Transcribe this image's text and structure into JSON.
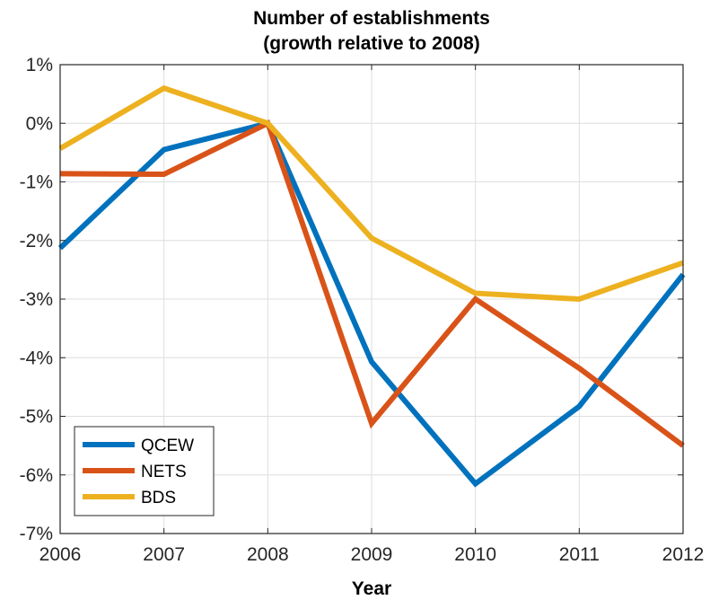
{
  "chart_data": {
    "type": "line",
    "title": [
      "Number of establishments",
      "(growth relative to 2008)"
    ],
    "xlabel": "Year",
    "ylabel": "",
    "x": [
      2006,
      2007,
      2008,
      2009,
      2010,
      2011,
      2012
    ],
    "xlim": [
      2006,
      2012
    ],
    "ylim": [
      -7,
      1
    ],
    "x_ticks": [
      "2006",
      "2007",
      "2008",
      "2009",
      "2010",
      "2011",
      "2012"
    ],
    "y_tick_values": [
      1,
      0,
      -1,
      -2,
      -3,
      -4,
      -5,
      -6,
      -7
    ],
    "y_ticks": [
      "1%",
      "0%",
      "-1%",
      "-2%",
      "-3%",
      "-4%",
      "-5%",
      "-6%",
      "-7%"
    ],
    "grid": true,
    "legend_position": "bottom-left",
    "series": [
      {
        "name": "QCEW",
        "color": "#0072BD",
        "values": [
          -2.13,
          -0.45,
          0.0,
          -4.07,
          -6.15,
          -4.83,
          -2.58
        ]
      },
      {
        "name": "NETS",
        "color": "#D95319",
        "values": [
          -0.86,
          -0.87,
          0.0,
          -5.12,
          -3.0,
          -4.18,
          -5.5
        ]
      },
      {
        "name": "BDS",
        "color": "#EDB120",
        "values": [
          -0.43,
          0.6,
          0.0,
          -1.96,
          -2.9,
          -3.0,
          -2.38
        ]
      }
    ]
  }
}
